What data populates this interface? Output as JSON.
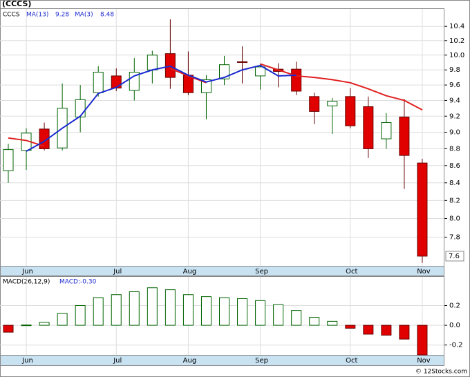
{
  "chart_data": [
    {
      "type": "candlestick",
      "title": "(CCCS)",
      "symbol": "CCCS",
      "categories": [
        null,
        "Jun",
        null,
        null,
        null,
        null,
        "Jul",
        null,
        null,
        null,
        "Aug",
        null,
        null,
        null,
        "Sep",
        null,
        null,
        null,
        null,
        "Oct",
        null,
        null,
        null,
        "Nov"
      ],
      "open": [
        8.54,
        8.78,
        9.04,
        8.81,
        9.19,
        9.5,
        9.72,
        9.53,
        9.8,
        10.02,
        9.73,
        9.5,
        9.68,
        9.91,
        9.72,
        9.81,
        9.81,
        9.45,
        9.33,
        9.45,
        9.32,
        8.92,
        9.19,
        8.63
      ],
      "high": [
        8.86,
        9.05,
        9.12,
        9.62,
        9.6,
        9.85,
        9.82,
        9.96,
        10.06,
        10.5,
        10.05,
        9.73,
        9.99,
        10.12,
        9.88,
        9.89,
        9.91,
        9.5,
        9.43,
        9.56,
        9.45,
        9.24,
        9.42,
        8.68
      ],
      "low": [
        8.4,
        8.55,
        8.78,
        8.78,
        9.0,
        9.45,
        9.52,
        9.4,
        9.62,
        9.55,
        9.47,
        9.16,
        9.6,
        9.62,
        9.54,
        9.57,
        9.47,
        9.1,
        8.98,
        9.05,
        8.69,
        8.8,
        8.33,
        7.53
      ],
      "close": [
        8.79,
        8.99,
        8.8,
        9.3,
        9.41,
        9.77,
        9.56,
        9.77,
        10.0,
        9.7,
        9.5,
        9.67,
        9.87,
        9.9,
        9.84,
        9.78,
        9.52,
        9.26,
        9.39,
        9.08,
        8.8,
        9.12,
        8.72,
        7.6
      ],
      "up_color": "#006400",
      "down_color": "#e00000",
      "series": [
        {
          "name": "MA(13)",
          "last_value": 9.28,
          "color": "#e02020",
          "values": [
            8.93,
            8.9,
            8.83,
            null,
            null,
            null,
            null,
            null,
            null,
            9.82,
            9.72,
            9.63,
            null,
            null,
            9.88,
            9.8,
            9.72,
            9.7,
            9.67,
            9.63,
            9.55,
            9.46,
            9.4,
            9.28
          ]
        },
        {
          "name": "MA(3)",
          "last_value": 8.48,
          "color": "#1a2ad0",
          "values": [
            null,
            8.77,
            8.89,
            9.05,
            9.2,
            9.49,
            9.57,
            9.72,
            9.8,
            9.85,
            9.73,
            9.64,
            9.7,
            9.8,
            9.86,
            9.72,
            9.73,
            null,
            null,
            null,
            null,
            null,
            null,
            null
          ]
        }
      ],
      "last_price": 7.6,
      "log_scale": true,
      "grid": true,
      "ylim": [
        7.5,
        10.65
      ],
      "yticks": [
        {
          "value": 7.8,
          "label": "7.8"
        },
        {
          "value": 8,
          "label": "8.0"
        },
        8.2,
        8.4,
        8.6,
        8.8,
        {
          "value": 9,
          "label": "9.0"
        },
        9.2,
        9.4,
        9.6,
        9.8,
        {
          "value": 10,
          "label": "10.0"
        },
        10.2,
        10.4
      ]
    },
    {
      "type": "bar",
      "title": "MACD(26,12,9)",
      "current_label": "MACD:-0.30",
      "categories": [
        null,
        "Jun",
        null,
        null,
        null,
        null,
        "Jul",
        null,
        null,
        null,
        "Aug",
        null,
        null,
        null,
        "Sep",
        null,
        null,
        null,
        null,
        "Oct",
        null,
        null,
        null,
        "Nov"
      ],
      "values": [
        -0.07,
        0.003,
        0.03,
        0.12,
        0.2,
        0.28,
        0.31,
        0.34,
        0.38,
        0.36,
        0.31,
        0.29,
        0.28,
        0.27,
        0.25,
        0.21,
        0.15,
        0.08,
        0.04,
        -0.03,
        -0.09,
        -0.1,
        -0.14,
        -0.3
      ],
      "up_color": "#006400",
      "down_color": "#e00000",
      "grid": true,
      "ylim": [
        -0.3,
        0.49
      ],
      "yticks": [
        {
          "value": -0.2,
          "label": "-0.2"
        },
        {
          "value": 0,
          "label": "0.0"
        },
        0.2
      ]
    }
  ]
}
